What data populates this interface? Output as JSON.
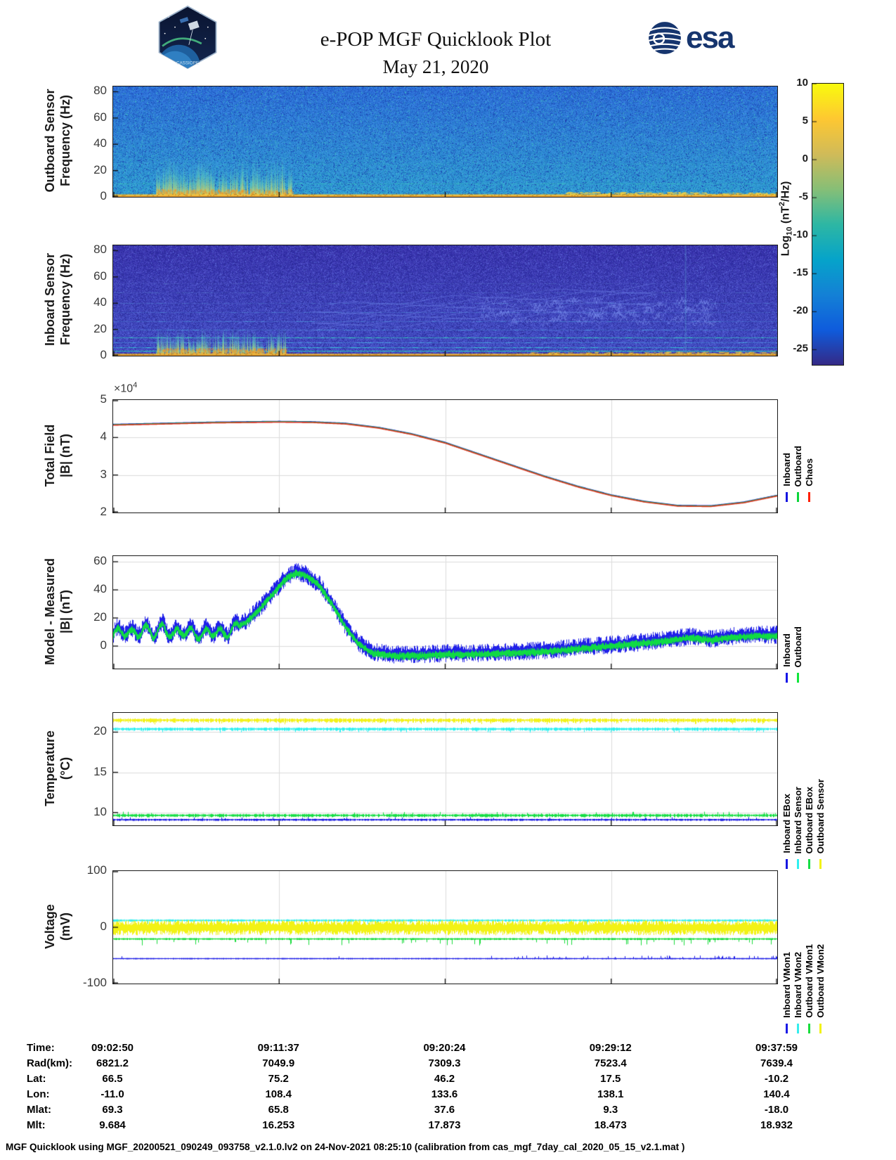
{
  "header": {
    "title": "e-POP MGF Quicklook Plot",
    "date": "May 21, 2020",
    "esa_text": "esa",
    "patch_text": "CASSIOPE"
  },
  "colorbar": {
    "label_prefix": "Log",
    "label_sub": "10",
    "label_mid": " (nT",
    "label_sup": "2",
    "label_suffix": "/Hz)",
    "ticks": [
      10,
      5,
      0,
      -5,
      -10,
      -15,
      -20,
      -25
    ],
    "range_top": 10,
    "range_bottom": -27,
    "colormap": [
      "#352a87",
      "#0f5cdd",
      "#1481d6",
      "#06a4ca",
      "#2eb7a4",
      "#87bf77",
      "#d1bb59",
      "#fec832",
      "#f9fb0e"
    ]
  },
  "time_axis": {
    "ticks": [
      "09:02:50",
      "09:11:37",
      "09:20:24",
      "09:29:12",
      "09:37:59"
    ]
  },
  "chart_data": [
    {
      "type": "heatmap",
      "name": "outboard-spectrogram",
      "ylabel_lines": [
        "Outboard Sensor",
        "Frequency (Hz)"
      ],
      "yticks": [
        0,
        20,
        40,
        60,
        80
      ],
      "ylim": [
        0,
        84
      ],
      "x_ticks": [
        "09:02:50",
        "09:11:37",
        "09:20:24",
        "09:29:12",
        "09:37:59"
      ],
      "description": "Broadband blue-cyan noise near -17 dB, yellow intense band below 2 Hz, impulsive yellow bursts up to 30 Hz between 09:04 and 09:08",
      "style": {
        "top_color": "#2d6fd7",
        "bottom_color": "#2f9bd1",
        "noise": 30,
        "dark_speckle": "#1c41b2",
        "dark_p": 0.1,
        "light_speckle": "#40c0c4",
        "light_p": 0.05,
        "hlines": [
          {
            "f": 10,
            "color": "#38bdbd",
            "alpha": 0.3
          },
          {
            "f": 25,
            "color": "#3ab4cd",
            "alpha": 0.18
          },
          {
            "f": 47,
            "color": "#3f93dd",
            "alpha": 0.12
          }
        ],
        "bottom_band": {
          "f_top": 2.2,
          "color": "#f5c23c",
          "color2": "#df8f2d"
        },
        "burst": {
          "x0": 0.065,
          "x1": 0.27,
          "max_f": 30,
          "n": 520,
          "color": "#f8d244"
        },
        "streaks": {
          "x0": 0.68,
          "x1": 1.0,
          "f_max": 3.2,
          "n": 300,
          "color": "#f4d040"
        }
      }
    },
    {
      "type": "heatmap",
      "name": "inboard-spectrogram",
      "ylabel_lines": [
        "Inboard Sensor",
        "Frequency (Hz)"
      ],
      "yticks": [
        0,
        20,
        40,
        60,
        80
      ],
      "ylim": [
        0,
        84
      ],
      "x_ticks": [
        "09:02:50",
        "09:11:37",
        "09:20:24",
        "09:29:12",
        "09:37:59"
      ],
      "description": "Darker indigo noise near -21 dB with narrowband cyan interference lines, yellow band below 2 Hz, bursts up to 20 Hz early in pass",
      "style": {
        "top_color": "#3b35af",
        "bottom_color": "#4350c5",
        "noise": 34,
        "dark_speckle": "#2b2b97",
        "dark_p": 0.16,
        "light_speckle": "#5c6cdb",
        "light_p": 0.07,
        "hlines": [
          {
            "f": 3.5,
            "color": "#2fd9b6",
            "alpha": 0.85
          },
          {
            "f": 6.5,
            "color": "#38c6d6",
            "alpha": 0.5
          },
          {
            "f": 10,
            "color": "#49a9e3",
            "alpha": 0.4
          },
          {
            "f": 14,
            "color": "#36cfbf",
            "alpha": 0.6
          },
          {
            "f": 20,
            "color": "#4b98de",
            "alpha": 0.38
          },
          {
            "f": 26,
            "color": "#4b91da",
            "alpha": 0.3
          },
          {
            "f": 33,
            "color": "#4f87d5",
            "alpha": 0.26
          },
          {
            "f": 40,
            "color": "#5180d1",
            "alpha": 0.22
          },
          {
            "f": 48,
            "color": "#5479cb",
            "alpha": 0.2
          },
          {
            "f": 55,
            "color": "#5572c5",
            "alpha": 0.16
          }
        ],
        "bottom_band": {
          "f_top": 1.8,
          "color": "#e7ab37",
          "color2": "#d98e2b"
        },
        "burst": {
          "x0": 0.065,
          "x1": 0.26,
          "max_f": 20,
          "n": 480,
          "color": "#f6c93e"
        },
        "streaks": {
          "x0": 0.62,
          "x1": 1.0,
          "f_max": 2.5,
          "n": 240,
          "color": "#ecc73c"
        },
        "arcs": {
          "n": 7,
          "x0": 0.3,
          "x1": 0.82,
          "f0": 20,
          "f1": 40,
          "color": "#6e86e8"
        },
        "squiggles": {
          "x0": 0.55,
          "x1": 0.9,
          "f0": 24,
          "f1": 42,
          "n": 100,
          "color": "#7b90ee"
        },
        "vstripes": [
          {
            "x": 0.305,
            "color": "#2a2a96",
            "alpha": 0.22
          },
          {
            "x": 0.862,
            "color": "#6fd8e8",
            "alpha": 0.22
          }
        ]
      }
    },
    {
      "type": "line",
      "name": "total-field",
      "ylabel_lines": [
        "Total Field",
        "|B| (nT)"
      ],
      "yticks": [
        2,
        3,
        4,
        5
      ],
      "ylim": [
        2,
        5
      ],
      "exponent": {
        "base": "×10",
        "sup": "4"
      },
      "x_ticks": [
        "09:02:50",
        "09:11:37",
        "09:20:24",
        "09:29:12",
        "09:37:59"
      ],
      "x": [
        0,
        0.05,
        0.1,
        0.15,
        0.2,
        0.25,
        0.3,
        0.35,
        0.4,
        0.45,
        0.5,
        0.55,
        0.6,
        0.65,
        0.7,
        0.75,
        0.8,
        0.85,
        0.9,
        0.95,
        1
      ],
      "y": [
        4.33,
        4.35,
        4.37,
        4.39,
        4.4,
        4.41,
        4.4,
        4.36,
        4.25,
        4.08,
        3.85,
        3.55,
        3.25,
        2.95,
        2.68,
        2.45,
        2.28,
        2.17,
        2.16,
        2.26,
        2.44
      ],
      "series": [
        {
          "name": "Inboard",
          "color": "#1414e0",
          "offset": 0.02
        },
        {
          "name": "Outboard",
          "color": "#0bd53a",
          "offset": 0.01
        },
        {
          "name": "Chaos",
          "color": "#e03020",
          "offset": 0
        }
      ],
      "legend": [
        {
          "label": "Inboard",
          "color": "#1414e0"
        },
        {
          "label": "Outboard",
          "color": "#0bd53a"
        },
        {
          "label": "Chaos",
          "color": "#ff1e00"
        }
      ]
    },
    {
      "type": "noisy",
      "name": "model-measured",
      "ylabel_lines": [
        "Model - Measured",
        "|B| (nT)"
      ],
      "yticks": [
        0,
        20,
        40,
        60
      ],
      "ylim": [
        -16,
        64
      ],
      "x_ticks": [
        "09:02:50",
        "09:11:37",
        "09:20:24",
        "09:29:12",
        "09:37:59"
      ],
      "x": [
        0,
        0.015,
        0.03,
        0.045,
        0.06,
        0.075,
        0.09,
        0.105,
        0.12,
        0.135,
        0.15,
        0.165,
        0.18,
        0.2,
        0.22,
        0.24,
        0.26,
        0.275,
        0.29,
        0.31,
        0.33,
        0.35,
        0.37,
        0.39,
        0.42,
        0.46,
        0.5,
        0.55,
        0.6,
        0.65,
        0.7,
        0.75,
        0.8,
        0.84,
        0.87,
        0.9,
        0.93,
        0.96,
        1.0
      ],
      "y": [
        9,
        12,
        9,
        13,
        10,
        14,
        9,
        12,
        10,
        9,
        12,
        9,
        13,
        18,
        27,
        38,
        49,
        53,
        51,
        44,
        30,
        14,
        2,
        -4,
        -6,
        -6,
        -5,
        -5,
        -4,
        -3,
        -1,
        1,
        3,
        5,
        7,
        5,
        7,
        8,
        8
      ],
      "wiggle": {
        "amp": 3.5,
        "freq": 45,
        "until": 0.19
      },
      "series": [
        {
          "name": "Inboard",
          "color": "#1414e8",
          "noise": 6.5,
          "offset": 0
        },
        {
          "name": "Outboard",
          "color": "#10e53c",
          "noise": 3.0,
          "offset": -1
        }
      ],
      "legend": [
        {
          "label": "Inboard",
          "color": "#1414e8"
        },
        {
          "label": "Outboard",
          "color": "#10e53c"
        }
      ]
    },
    {
      "type": "flatlines",
      "name": "temperature",
      "ylabel_lines": [
        "Temperature",
        "(°C)"
      ],
      "yticks": [
        10,
        15,
        20
      ],
      "ylim": [
        8.4,
        22.4
      ],
      "x_ticks": [
        "09:02:50",
        "09:11:37",
        "09:20:24",
        "09:29:12",
        "09:37:59"
      ],
      "series": [
        {
          "name": "Outboard Sensor",
          "color": "#f2f218",
          "base": 21.55,
          "noise": 0.3,
          "spike_p": 0.05,
          "spike": -0.5
        },
        {
          "name": "Inboard Sensor",
          "color": "#2ff0f0",
          "base": 20.45,
          "noise": 0.22,
          "spike_p": 0.05,
          "spike": -0.45
        },
        {
          "name": "Outboard EBox",
          "color": "#17dd45",
          "base": 9.7,
          "noise": 0.22,
          "spike_p": 0.04,
          "spike": 0.4
        },
        {
          "name": "Inboard EBox",
          "color": "#1616e0",
          "base": 9.15,
          "noise": 0.12,
          "spike_p": 0.03,
          "spike": 0.3
        }
      ],
      "legend": [
        {
          "label": "Inboard EBox",
          "color": "#1616e0"
        },
        {
          "label": "Inboard Sensor",
          "color": "#2ff0f0"
        },
        {
          "label": "Outboard EBox",
          "color": "#17dd45"
        },
        {
          "label": "Outboard Sensor",
          "color": "#f2f218"
        }
      ]
    },
    {
      "type": "flatlines",
      "name": "voltage",
      "ylabel_lines": [
        "Voltage",
        "(mV)"
      ],
      "yticks": [
        -100,
        0,
        100
      ],
      "ylim": [
        -100,
        100
      ],
      "x_ticks": [
        "09:02:50",
        "09:11:37",
        "09:20:24",
        "09:29:12",
        "09:37:59"
      ],
      "series": [
        {
          "name": "Inboard VMon2",
          "color": "#35eded",
          "base": 13,
          "noise": 2,
          "spike_p": 0.02,
          "spike": -6
        },
        {
          "name": "Outboard VMon2",
          "color": "#f2f215",
          "base": 0,
          "noise": 13,
          "spike_p": 0,
          "band": true
        },
        {
          "name": "Outboard VMon1",
          "color": "#19dd3c",
          "base": -20,
          "noise": 1.5,
          "spike_p": 0.06,
          "spike": -11
        },
        {
          "name": "Inboard VMon1",
          "color": "#1a1ae6",
          "base": -55,
          "noise": 0.8,
          "spike_p": 0.05,
          "spike": 5,
          "ramp": true
        }
      ],
      "legend": [
        {
          "label": "Inboard VMon1",
          "color": "#1a1ae6"
        },
        {
          "label": "Inboard VMon2",
          "color": "#35eded"
        },
        {
          "label": "Outboard VMon1",
          "color": "#19dd3c"
        },
        {
          "label": "Outboard VMon2",
          "color": "#f2f215"
        }
      ]
    }
  ],
  "info_table": {
    "rows": [
      {
        "label": "Time:",
        "values": [
          "09:02:50",
          "09:11:37",
          "09:20:24",
          "09:29:12",
          "09:37:59"
        ]
      },
      {
        "label": "Rad(km):",
        "values": [
          "6821.2",
          "7049.9",
          "7309.3",
          "7523.4",
          "7639.4"
        ]
      },
      {
        "label": "Lat:",
        "values": [
          "66.5",
          "75.2",
          "46.2",
          "17.5",
          "-10.2"
        ]
      },
      {
        "label": "Lon:",
        "values": [
          "-11.0",
          "108.4",
          "133.6",
          "138.1",
          "140.4"
        ]
      },
      {
        "label": "Mlat:",
        "values": [
          "69.3",
          "65.8",
          "37.6",
          "9.3",
          "-18.0"
        ]
      },
      {
        "label": "Mlt:",
        "values": [
          "9.684",
          "16.253",
          "17.873",
          "18.473",
          "18.932"
        ]
      }
    ]
  },
  "caption": "MGF Quicklook using MGF_20200521_090249_093758_v2.1.0.lv2 on 24-Nov-2021 08:25:10 (calibration from cas_mgf_7day_cal_2020_05_15_v2.1.mat )"
}
